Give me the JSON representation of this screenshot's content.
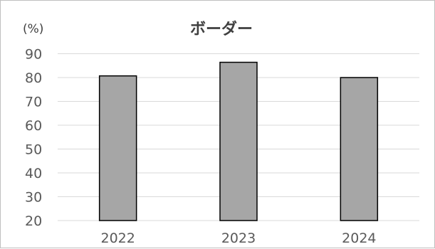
{
  "chart_data": {
    "type": "bar",
    "title": "ボーダー",
    "ylabel": "(%)",
    "xlabel": "",
    "categories": [
      "2022",
      "2023",
      "2024"
    ],
    "values": [
      80.7,
      86.4,
      80.0
    ],
    "ylim": [
      20,
      90
    ],
    "yticks": [
      "90",
      "80",
      "70",
      "60",
      "50",
      "40",
      "30",
      "20"
    ],
    "grid": true,
    "legend": "none",
    "colors": {
      "bar_fill": "#a6a6a6",
      "bar_stroke": "#000000",
      "grid": "#d9d9d9",
      "axis": "#d9d9d9"
    }
  }
}
